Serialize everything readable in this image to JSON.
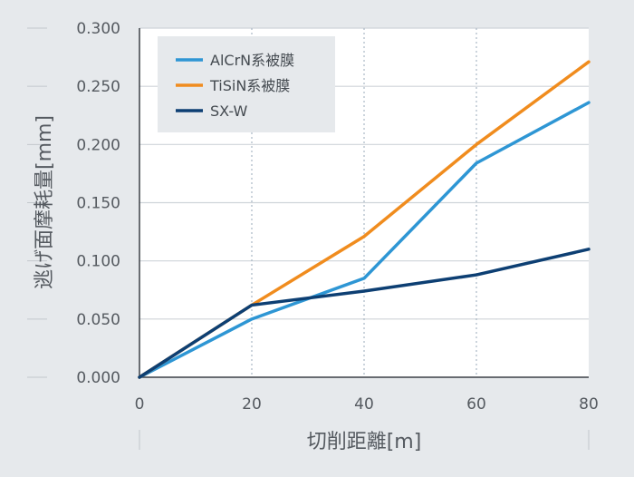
{
  "chart_data": {
    "type": "line",
    "xlabel": "切削距離[m]",
    "ylabel": "逃げ面摩耗量[mm]",
    "x": [
      0,
      20,
      40,
      60,
      80
    ],
    "xticks": [
      "0",
      "20",
      "40",
      "60",
      "80"
    ],
    "yticks": [
      "0.000",
      "0.050",
      "0.100",
      "0.150",
      "0.200",
      "0.250",
      "0.300"
    ],
    "xlim": [
      0,
      80
    ],
    "ylim": [
      0,
      0.3
    ],
    "grid": "vertical dotted, horizontal solid",
    "legend_position": "top-left",
    "series": [
      {
        "name": "AlCrN系被膜",
        "color": "#2e96d4",
        "values": [
          0,
          0.05,
          0.085,
          0.184,
          0.236
        ]
      },
      {
        "name": "TiSiN系被膜",
        "color": "#f08c1e",
        "values": [
          0,
          0.062,
          0.121,
          0.2,
          0.271
        ]
      },
      {
        "name": "SX-W",
        "color": "#0d3f73",
        "values": [
          0,
          0.062,
          0.074,
          0.088,
          0.11
        ]
      }
    ]
  }
}
